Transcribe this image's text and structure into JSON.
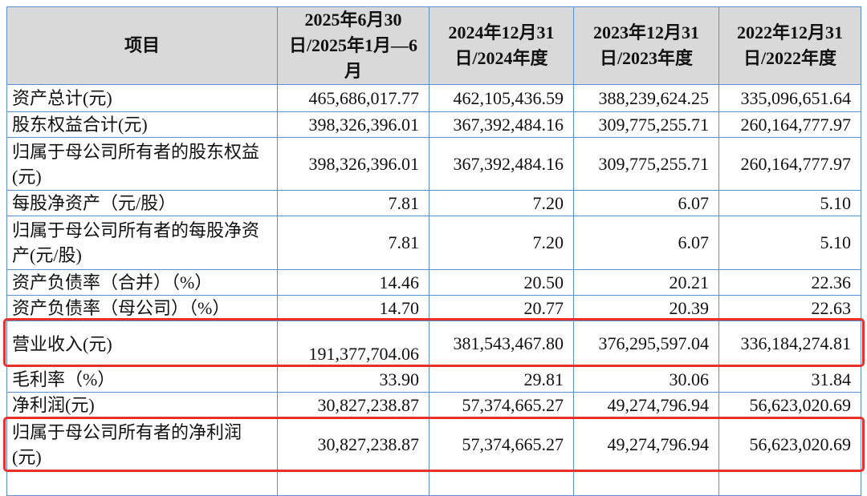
{
  "headers": [
    "项目",
    "2025年6月30日/2025年1月—6月",
    "2024年12月31日/2024年度",
    "2023年12月31日/2023年度",
    "2022年12月31日/2022年度"
  ],
  "rows": [
    {
      "label": "资产总计(元)",
      "values": [
        "465,686,017.77",
        "462,105,436.59",
        "388,239,624.25",
        "335,096,651.64"
      ]
    },
    {
      "label": "股东权益合计(元)",
      "values": [
        "398,326,396.01",
        "367,392,484.16",
        "309,775,255.71",
        "260,164,777.97"
      ]
    },
    {
      "label": "归属于母公司所有者的股东权益(元)",
      "values": [
        "398,326,396.01",
        "367,392,484.16",
        "309,775,255.71",
        "260,164,777.97"
      ]
    },
    {
      "label": "每股净资产（元/股）",
      "values": [
        "7.81",
        "7.20",
        "6.07",
        "5.10"
      ]
    },
    {
      "label": "归属于母公司所有者的每股净资产(元/股)",
      "values": [
        "7.81",
        "7.20",
        "6.07",
        "5.10"
      ]
    },
    {
      "label": "资产负债率（合并）（%）",
      "values": [
        "14.46",
        "20.50",
        "20.21",
        "22.36"
      ]
    },
    {
      "label": "资产负债率（母公司）（%）",
      "values": [
        "14.70",
        "20.77",
        "20.39",
        "22.63"
      ]
    },
    {
      "label": "营业收入(元)",
      "values": [
        "191,377,704.06",
        "381,543,467.80",
        "376,295,597.04",
        "336,184,274.81"
      ],
      "highlighted": true
    },
    {
      "label": "毛利率（%）",
      "values": [
        "33.90",
        "29.81",
        "30.06",
        "31.84"
      ]
    },
    {
      "label": "净利润(元)",
      "values": [
        "30,827,238.87",
        "57,374,665.27",
        "49,274,796.94",
        "56,623,020.69"
      ]
    },
    {
      "label": "归属于母公司所有者的净利润(元)",
      "values": [
        "30,827,238.87",
        "57,374,665.27",
        "49,274,796.94",
        "56,623,020.69"
      ],
      "highlighted": true
    }
  ],
  "highlight_color": "#e8302a"
}
